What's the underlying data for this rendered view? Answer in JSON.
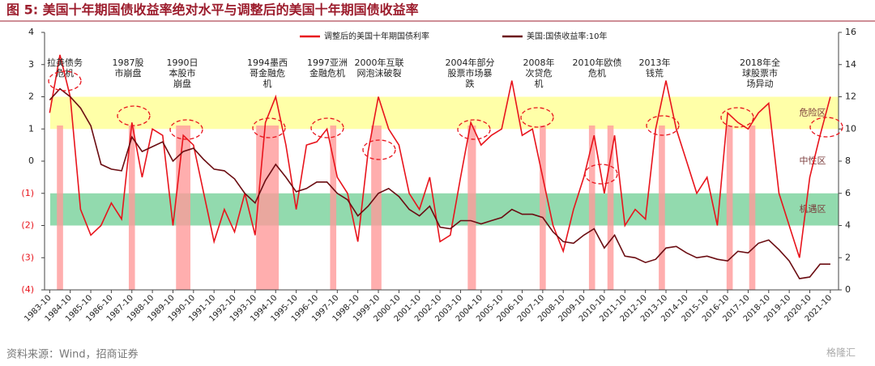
{
  "chart_data": {
    "type": "line",
    "title": "图 5: 美国十年期国债收益率绝对水平与调整后的美国十年期国债收益率",
    "source": "资料来源：Wind，招商证券",
    "watermark": "格隆汇",
    "x": [
      1983.75,
      1984.25,
      1984.75,
      1985.25,
      1985.75,
      1986.25,
      1986.75,
      1987.25,
      1987.75,
      1988.25,
      1988.75,
      1989.25,
      1989.75,
      1990.25,
      1990.75,
      1991.25,
      1991.75,
      1992.25,
      1992.75,
      1993.25,
      1993.75,
      1994.25,
      1994.75,
      1995.25,
      1995.75,
      1996.25,
      1996.75,
      1997.25,
      1997.75,
      1998.25,
      1998.75,
      1999.25,
      1999.75,
      2000.25,
      2000.75,
      2001.25,
      2001.75,
      2002.25,
      2002.75,
      2003.25,
      2003.75,
      2004.25,
      2004.75,
      2005.25,
      2005.75,
      2006.25,
      2006.75,
      2007.25,
      2007.75,
      2008.25,
      2008.75,
      2009.25,
      2009.75,
      2010.25,
      2010.75,
      2011.25,
      2011.75,
      2012.25,
      2012.75,
      2013.25,
      2013.75,
      2014.25,
      2014.75,
      2015.25,
      2015.75,
      2016.25,
      2016.75,
      2017.25,
      2017.75,
      2018.25,
      2018.75,
      2019.25,
      2019.75,
      2020.25,
      2020.75,
      2021.25,
      2021.75
    ],
    "series": [
      {
        "name": "调整后的美国十年期国债利率",
        "color": "#e8141c",
        "values": [
          1.5,
          3.3,
          2.0,
          -1.5,
          -2.3,
          -2.0,
          -1.3,
          -1.8,
          1.2,
          -0.5,
          1.0,
          0.8,
          -2.0,
          0.8,
          0.5,
          -1.0,
          -2.5,
          -1.5,
          -2.2,
          -1.0,
          -2.3,
          1.2,
          2.0,
          0.5,
          -1.5,
          0.5,
          0.6,
          1.0,
          -0.5,
          -1.0,
          -2.5,
          0.3,
          2.0,
          1.0,
          0.5,
          -1.0,
          -1.5,
          -0.5,
          -2.5,
          -2.3,
          -0.5,
          1.2,
          0.5,
          0.8,
          1.0,
          2.5,
          0.8,
          1.0,
          -0.5,
          -2.0,
          -2.8,
          -1.5,
          -0.5,
          0.8,
          -1.0,
          0.8,
          -2.0,
          -1.5,
          -1.8,
          1.0,
          2.5,
          1.0,
          0.0,
          -1.0,
          -0.5,
          -2.0,
          1.5,
          1.2,
          1.0,
          1.5,
          1.8,
          -1.0,
          -2.0,
          -3.0,
          -0.5,
          0.8,
          2.0
        ]
      },
      {
        "name": "美国:国债收益率:10年",
        "color": "#6b0d12",
        "axis": "y2",
        "values": [
          11.8,
          12.5,
          12.0,
          11.3,
          10.2,
          7.8,
          7.5,
          7.4,
          9.5,
          8.6,
          8.9,
          9.2,
          8.0,
          8.6,
          8.8,
          8.1,
          7.5,
          7.4,
          6.9,
          6.0,
          5.4,
          6.8,
          7.8,
          7.0,
          6.1,
          6.3,
          6.7,
          6.7,
          6.0,
          5.6,
          4.6,
          5.2,
          6.0,
          6.3,
          5.8,
          5.0,
          4.6,
          5.2,
          3.9,
          3.8,
          4.3,
          4.3,
          4.1,
          4.3,
          4.5,
          5.0,
          4.7,
          4.7,
          4.5,
          3.6,
          3.0,
          2.9,
          3.4,
          3.8,
          2.6,
          3.4,
          2.1,
          2.0,
          1.7,
          1.9,
          2.6,
          2.7,
          2.3,
          2.0,
          2.1,
          1.9,
          1.8,
          2.4,
          2.3,
          2.9,
          3.1,
          2.5,
          1.8,
          0.7,
          0.8,
          1.6,
          1.6
        ]
      }
    ],
    "xlim": [
      1983.5,
      2022.15
    ],
    "xticks": [
      {
        "value": 1983.75,
        "label": "1983-10"
      },
      {
        "value": 1984.75,
        "label": "1984-10"
      },
      {
        "value": 1985.75,
        "label": "1985-10"
      },
      {
        "value": 1986.75,
        "label": "1986-10"
      },
      {
        "value": 1987.75,
        "label": "1987-10"
      },
      {
        "value": 1988.75,
        "label": "1988-10"
      },
      {
        "value": 1989.75,
        "label": "1989-10"
      },
      {
        "value": 1990.75,
        "label": "1990-10"
      },
      {
        "value": 1991.75,
        "label": "1991-10"
      },
      {
        "value": 1992.75,
        "label": "1992-10"
      },
      {
        "value": 1993.75,
        "label": "1993-10"
      },
      {
        "value": 1994.75,
        "label": "1994-10"
      },
      {
        "value": 1995.75,
        "label": "1995-10"
      },
      {
        "value": 1996.75,
        "label": "1996-10"
      },
      {
        "value": 1997.75,
        "label": "1997-10"
      },
      {
        "value": 1998.75,
        "label": "1998-10"
      },
      {
        "value": 1999.75,
        "label": "1999-10"
      },
      {
        "value": 2000.75,
        "label": "2000-10"
      },
      {
        "value": 2001.75,
        "label": "2001-10"
      },
      {
        "value": 2002.75,
        "label": "2002-10"
      },
      {
        "value": 2003.75,
        "label": "2003-10"
      },
      {
        "value": 2004.75,
        "label": "2004-10"
      },
      {
        "value": 2005.75,
        "label": "2005-10"
      },
      {
        "value": 2006.75,
        "label": "2006-10"
      },
      {
        "value": 2007.75,
        "label": "2007-10"
      },
      {
        "value": 2008.75,
        "label": "2008-10"
      },
      {
        "value": 2009.75,
        "label": "2009-10"
      },
      {
        "value": 2010.75,
        "label": "2010-10"
      },
      {
        "value": 2011.75,
        "label": "2011-10"
      },
      {
        "value": 2012.75,
        "label": "2012-10"
      },
      {
        "value": 2013.75,
        "label": "2013-10"
      },
      {
        "value": 2014.75,
        "label": "2014-10"
      },
      {
        "value": 2015.75,
        "label": "2015-10"
      },
      {
        "value": 2016.75,
        "label": "2016-10"
      },
      {
        "value": 2017.75,
        "label": "2017-10"
      },
      {
        "value": 2018.75,
        "label": "2018-10"
      },
      {
        "value": 2019.75,
        "label": "2019-10"
      },
      {
        "value": 2020.75,
        "label": "2020-10"
      },
      {
        "value": 2021.75,
        "label": "2021-10"
      }
    ],
    "ylim": [
      -4,
      4
    ],
    "yticks": [
      {
        "value": -4,
        "label": "(4)"
      },
      {
        "value": -3,
        "label": "(3)"
      },
      {
        "value": -2,
        "label": "(2)"
      },
      {
        "value": -1,
        "label": "(1)"
      },
      0,
      1,
      2,
      3,
      4
    ],
    "y2lim": [
      0,
      16
    ],
    "y2ticks": [
      0,
      2,
      4,
      6,
      8,
      10,
      12,
      14,
      16
    ],
    "negative_tick_color": "#e8141c",
    "bands": [
      {
        "from": 1,
        "to": 2,
        "color": "#ffff99",
        "label": "危险区"
      },
      {
        "from": -2,
        "to": -1,
        "color": "#7fd3a0",
        "label": "机遇区"
      }
    ],
    "neutral_label": "中性区",
    "shaded_periods": [
      [
        1984.1,
        1984.4
      ],
      [
        1987.6,
        1987.9
      ],
      [
        1989.9,
        1990.6
      ],
      [
        1993.8,
        1994.9
      ],
      [
        1997.4,
        1997.7
      ],
      [
        1999.4,
        1999.9
      ],
      [
        2004.1,
        2004.5
      ],
      [
        2007.6,
        2007.9
      ],
      [
        2010.0,
        2010.3
      ],
      [
        2010.9,
        2011.2
      ],
      [
        2013.4,
        2013.7
      ],
      [
        2016.7,
        2017.0
      ],
      [
        2017.8,
        2018.1
      ]
    ],
    "shaded_color": "#ff9a9a",
    "annotations": [
      [
        "拉美债务",
        "危机"
      ],
      [
        "1987股",
        "市崩盘"
      ],
      [
        "1990日",
        "本股市",
        "崩盘"
      ],
      [
        "1994墨西",
        "哥金融危",
        "机"
      ],
      [
        "1997亚洲",
        "金融危机"
      ],
      [
        "2000年互联",
        "网泡沫破裂"
      ],
      [
        "2004年部分",
        "股票市场暴",
        "跌"
      ],
      [
        "2008年",
        "次贷危",
        "机"
      ],
      [
        "2010年欧债",
        "危机"
      ],
      [
        "2013年",
        "钱荒"
      ],
      [
        "2018年全",
        "球股票市",
        "场异动"
      ]
    ]
  }
}
